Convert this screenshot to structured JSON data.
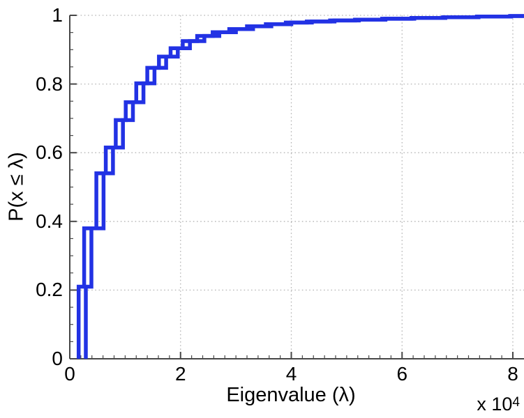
{
  "figure": {
    "background": "#ffffff",
    "axis_color": "#474747",
    "grid_color": "#b5b5b5",
    "label_color": "#000000"
  },
  "chart_data": {
    "type": "line",
    "subtype": "empirical-cdf-staircase",
    "title": "",
    "xlabel": "Eigenvalue (λ)",
    "ylabel": "P(x ≤ λ)",
    "x_scale": {
      "prefix": "x 10",
      "exponent": "4"
    },
    "xlim": [
      0,
      8.2
    ],
    "ylim": [
      0,
      1
    ],
    "xticks": {
      "values": [
        0,
        2,
        4,
        6,
        8
      ],
      "labels": [
        "0",
        "2",
        "4",
        "6",
        "8"
      ]
    },
    "yticks": {
      "values": [
        0,
        0.2,
        0.4,
        0.6,
        0.8,
        1
      ],
      "labels": [
        "0",
        "0.2",
        "0.4",
        "0.6",
        "0.8",
        "1"
      ]
    },
    "grid": {
      "style": "dotted",
      "major_only": true
    },
    "line_color": "#2232e4",
    "line_width": 5.5,
    "series": [
      {
        "name": "empirical-cdf-1",
        "color": "#2232e4",
        "end_x": 8.2,
        "jump_x": [
          0.16,
          0.26,
          0.48,
          0.65,
          0.83,
          1.01,
          1.2,
          1.4,
          1.61,
          1.82,
          2.04,
          2.3,
          2.58,
          2.88,
          3.2,
          3.54,
          3.9,
          4.28,
          4.7,
          5.15,
          5.64,
          6.17,
          6.74,
          7.35,
          7.95
        ],
        "levels": [
          0.21,
          0.38,
          0.54,
          0.615,
          0.695,
          0.747,
          0.802,
          0.847,
          0.88,
          0.904,
          0.925,
          0.94,
          0.951,
          0.96,
          0.968,
          0.974,
          0.979,
          0.982,
          0.985,
          0.9875,
          0.99,
          0.9925,
          0.9945,
          0.9965,
          0.998
        ]
      },
      {
        "name": "empirical-cdf-2",
        "color": "#2232e4",
        "end_x": 8.2,
        "jump_x": [
          0.29,
          0.39,
          0.61,
          0.78,
          0.96,
          1.14,
          1.33,
          1.53,
          1.74,
          1.95,
          2.17,
          2.43,
          2.7,
          3.0,
          3.31,
          3.64,
          4.0,
          4.37,
          4.78,
          5.22,
          5.7,
          6.22,
          6.78,
          7.38,
          7.97
        ],
        "levels": [
          0.21,
          0.38,
          0.54,
          0.615,
          0.695,
          0.747,
          0.802,
          0.847,
          0.88,
          0.904,
          0.925,
          0.94,
          0.951,
          0.96,
          0.968,
          0.974,
          0.979,
          0.982,
          0.985,
          0.9875,
          0.99,
          0.9925,
          0.9945,
          0.9965,
          0.998
        ]
      }
    ]
  }
}
